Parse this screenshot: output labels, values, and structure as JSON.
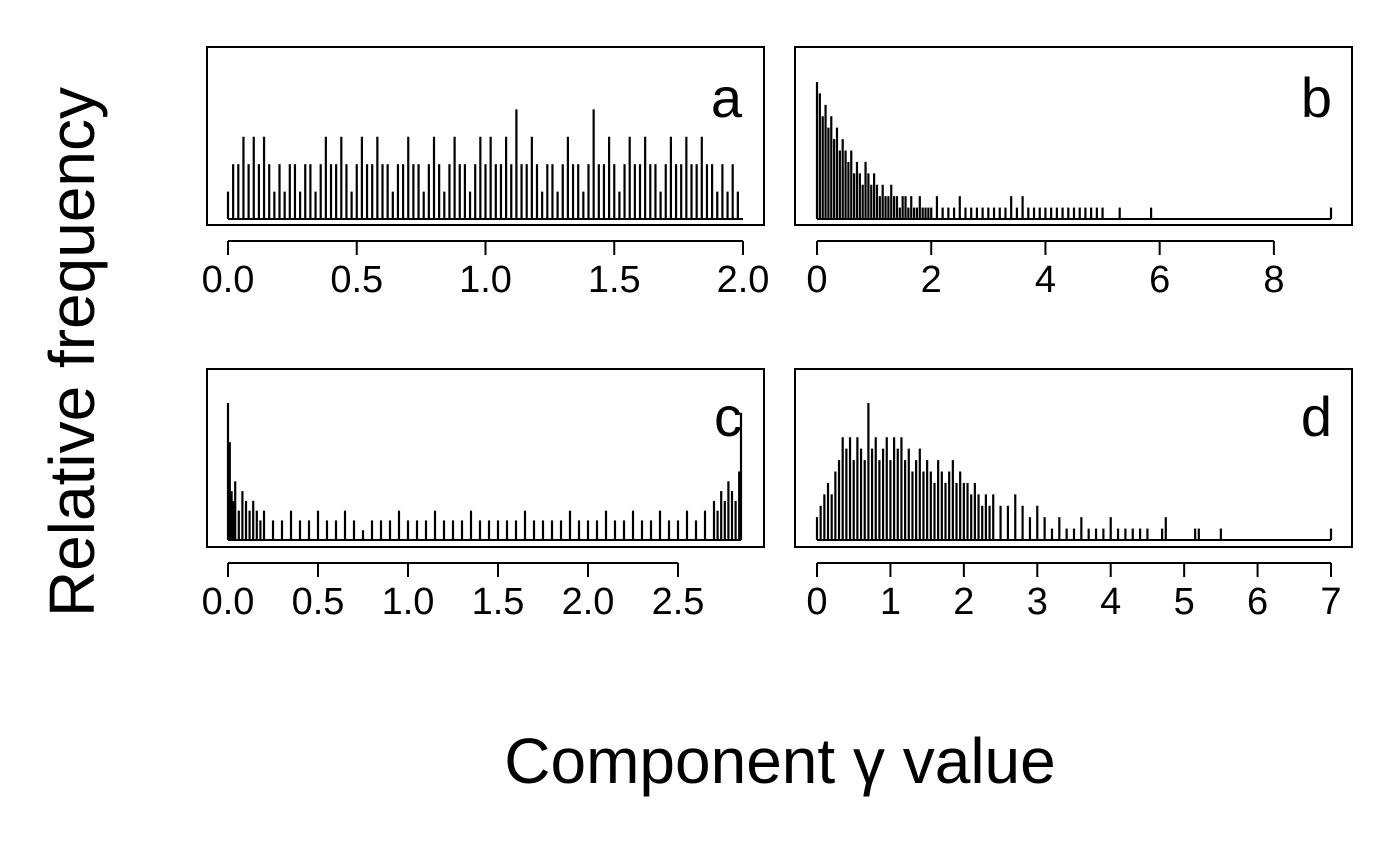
{
  "figure": {
    "ylabel": "Relative frequency",
    "xlabel": "Component γ value"
  },
  "colors": {
    "ink": "#000000",
    "background": "#ffffff"
  },
  "chart_data": [
    {
      "type": "bar",
      "panel": "a",
      "xlim": [
        0,
        2.0
      ],
      "xticks": [
        "0.0",
        "0.5",
        "1.0",
        "1.5",
        "2.0"
      ],
      "xtick_values": [
        0,
        0.5,
        1.0,
        1.5,
        2.0
      ],
      "y_axis": "none",
      "bins_x": [
        0.0,
        0.02,
        0.04,
        0.06,
        0.08,
        0.1,
        0.12,
        0.14,
        0.16,
        0.18,
        0.2,
        0.22,
        0.24,
        0.26,
        0.28,
        0.3,
        0.32,
        0.34,
        0.36,
        0.38,
        0.4,
        0.42,
        0.44,
        0.46,
        0.48,
        0.5,
        0.52,
        0.54,
        0.56,
        0.58,
        0.6,
        0.62,
        0.64,
        0.66,
        0.68,
        0.7,
        0.72,
        0.74,
        0.76,
        0.78,
        0.8,
        0.82,
        0.84,
        0.86,
        0.88,
        0.9,
        0.92,
        0.94,
        0.96,
        0.98,
        1.0,
        1.02,
        1.04,
        1.06,
        1.08,
        1.1,
        1.12,
        1.14,
        1.16,
        1.18,
        1.2,
        1.22,
        1.24,
        1.26,
        1.28,
        1.3,
        1.32,
        1.34,
        1.36,
        1.38,
        1.4,
        1.42,
        1.44,
        1.46,
        1.48,
        1.5,
        1.52,
        1.54,
        1.56,
        1.58,
        1.6,
        1.62,
        1.64,
        1.66,
        1.68,
        1.7,
        1.72,
        1.74,
        1.76,
        1.78,
        1.8,
        1.82,
        1.84,
        1.86,
        1.88,
        1.9,
        1.92,
        1.94,
        1.96,
        1.98,
        2.0
      ],
      "values": [
        1,
        2,
        2,
        3,
        2,
        3,
        2,
        3,
        2,
        1,
        2,
        1,
        2,
        2,
        1,
        2,
        2,
        1,
        2,
        3,
        2,
        2,
        3,
        2,
        1,
        2,
        3,
        2,
        2,
        3,
        2,
        2,
        1,
        2,
        2,
        3,
        2,
        2,
        1,
        2,
        3,
        2,
        1,
        2,
        3,
        2,
        2,
        1,
        2,
        3,
        2,
        3,
        2,
        2,
        3,
        2,
        4,
        2,
        2,
        3,
        2,
        1,
        2,
        2,
        1,
        2,
        3,
        2,
        2,
        1,
        2,
        4,
        2,
        2,
        3,
        2,
        1,
        2,
        3,
        2,
        2,
        3,
        2,
        2,
        1,
        2,
        3,
        2,
        2,
        3,
        2,
        2,
        3,
        2,
        2,
        1,
        2,
        1,
        2,
        1
      ],
      "ylim": [
        0,
        5
      ]
    },
    {
      "type": "bar",
      "panel": "b",
      "xlim": [
        0,
        9
      ],
      "xticks": [
        "0",
        "2",
        "4",
        "6",
        "8"
      ],
      "xtick_values": [
        0,
        2,
        4,
        6,
        8
      ],
      "y_axis": "none",
      "bins_x": [
        0.0,
        0.05,
        0.1,
        0.15,
        0.2,
        0.25,
        0.3,
        0.35,
        0.4,
        0.45,
        0.5,
        0.55,
        0.6,
        0.65,
        0.7,
        0.75,
        0.8,
        0.85,
        0.9,
        0.95,
        1.0,
        1.05,
        1.1,
        1.15,
        1.2,
        1.25,
        1.3,
        1.35,
        1.4,
        1.45,
        1.5,
        1.55,
        1.6,
        1.65,
        1.7,
        1.75,
        1.8,
        1.85,
        1.9,
        1.95,
        2.0,
        2.1,
        2.2,
        2.3,
        2.4,
        2.5,
        2.6,
        2.7,
        2.8,
        2.9,
        3.0,
        3.1,
        3.2,
        3.3,
        3.4,
        3.5,
        3.6,
        3.7,
        3.8,
        3.9,
        4.0,
        4.1,
        4.2,
        4.3,
        4.4,
        4.5,
        4.6,
        4.7,
        4.8,
        4.9,
        5.0,
        5.3,
        5.85,
        9.0
      ],
      "values": [
        12,
        11,
        9,
        10,
        8,
        9,
        7,
        8,
        6,
        7,
        6,
        5,
        6,
        4,
        5,
        4,
        3,
        5,
        4,
        3,
        4,
        3,
        2,
        3,
        2,
        2,
        3,
        2,
        2,
        1,
        2,
        2,
        1,
        2,
        1,
        1,
        2,
        1,
        1,
        1,
        1,
        2,
        1,
        1,
        1,
        2,
        1,
        1,
        1,
        1,
        1,
        1,
        1,
        1,
        2,
        1,
        2,
        1,
        1,
        1,
        1,
        1,
        1,
        1,
        1,
        1,
        1,
        1,
        1,
        1,
        1,
        1,
        1,
        1
      ],
      "ylim": [
        0,
        12
      ]
    },
    {
      "type": "bar",
      "panel": "c",
      "xlim": [
        0,
        2.85
      ],
      "xticks": [
        "0.0",
        "0.5",
        "1.0",
        "1.5",
        "2.0",
        "2.5"
      ],
      "xtick_values": [
        0,
        0.5,
        1.0,
        1.5,
        2.0,
        2.5
      ],
      "y_axis": "none",
      "bins_x": [
        0.0,
        0.01,
        0.02,
        0.03,
        0.04,
        0.06,
        0.08,
        0.1,
        0.12,
        0.14,
        0.16,
        0.18,
        0.2,
        0.25,
        0.3,
        0.35,
        0.4,
        0.45,
        0.5,
        0.55,
        0.6,
        0.65,
        0.7,
        0.75,
        0.8,
        0.85,
        0.9,
        0.95,
        1.0,
        1.05,
        1.1,
        1.15,
        1.2,
        1.25,
        1.3,
        1.35,
        1.4,
        1.45,
        1.5,
        1.55,
        1.6,
        1.65,
        1.7,
        1.75,
        1.8,
        1.85,
        1.9,
        1.95,
        2.0,
        2.05,
        2.1,
        2.15,
        2.2,
        2.25,
        2.3,
        2.35,
        2.4,
        2.45,
        2.5,
        2.55,
        2.6,
        2.65,
        2.7,
        2.72,
        2.74,
        2.76,
        2.78,
        2.8,
        2.82,
        2.84,
        2.85
      ],
      "values": [
        14,
        10,
        5,
        4,
        6,
        3,
        5,
        4,
        3,
        4,
        3,
        2,
        3,
        2,
        2,
        3,
        2,
        2,
        3,
        2,
        2,
        3,
        2,
        1,
        2,
        2,
        2,
        3,
        2,
        2,
        2,
        3,
        2,
        2,
        2,
        3,
        2,
        2,
        2,
        2,
        2,
        3,
        2,
        2,
        2,
        2,
        3,
        2,
        2,
        2,
        3,
        2,
        2,
        3,
        2,
        2,
        3,
        2,
        2,
        3,
        2,
        3,
        4,
        3,
        5,
        4,
        6,
        5,
        4,
        7,
        13
      ],
      "ylim": [
        0,
        14
      ]
    },
    {
      "type": "bar",
      "panel": "d",
      "xlim": [
        0,
        7
      ],
      "xticks": [
        "0",
        "1",
        "2",
        "3",
        "4",
        "5",
        "6",
        "7"
      ],
      "xtick_values": [
        0,
        1,
        2,
        3,
        4,
        5,
        6,
        7
      ],
      "y_axis": "none",
      "bins_x": [
        0.0,
        0.05,
        0.1,
        0.15,
        0.2,
        0.25,
        0.3,
        0.35,
        0.4,
        0.45,
        0.5,
        0.55,
        0.6,
        0.65,
        0.7,
        0.75,
        0.8,
        0.85,
        0.9,
        0.95,
        1.0,
        1.05,
        1.1,
        1.15,
        1.2,
        1.25,
        1.3,
        1.35,
        1.4,
        1.45,
        1.5,
        1.55,
        1.6,
        1.65,
        1.7,
        1.75,
        1.8,
        1.85,
        1.9,
        1.95,
        2.0,
        2.05,
        2.1,
        2.15,
        2.2,
        2.25,
        2.3,
        2.35,
        2.4,
        2.5,
        2.6,
        2.7,
        2.8,
        2.9,
        3.0,
        3.1,
        3.2,
        3.3,
        3.4,
        3.5,
        3.6,
        3.7,
        3.8,
        3.9,
        4.0,
        4.1,
        4.2,
        4.3,
        4.4,
        4.5,
        4.7,
        4.75,
        5.15,
        5.2,
        5.5,
        7.0
      ],
      "values": [
        2,
        3,
        4,
        5,
        4,
        6,
        7,
        9,
        8,
        9,
        7,
        9,
        8,
        7,
        12,
        8,
        9,
        7,
        8,
        9,
        7,
        9,
        8,
        9,
        7,
        8,
        6,
        7,
        8,
        6,
        7,
        6,
        5,
        7,
        6,
        5,
        6,
        7,
        5,
        6,
        5,
        5,
        4,
        5,
        4,
        3,
        4,
        3,
        4,
        3,
        3,
        4,
        3,
        2,
        3,
        2,
        1,
        2,
        1,
        1,
        2,
        1,
        1,
        1,
        2,
        1,
        1,
        1,
        1,
        1,
        1,
        2,
        1,
        1,
        1,
        1
      ],
      "ylim": [
        0,
        12
      ]
    }
  ],
  "panels": [
    {
      "letter": "a"
    },
    {
      "letter": "b"
    },
    {
      "letter": "c"
    },
    {
      "letter": "d"
    }
  ]
}
